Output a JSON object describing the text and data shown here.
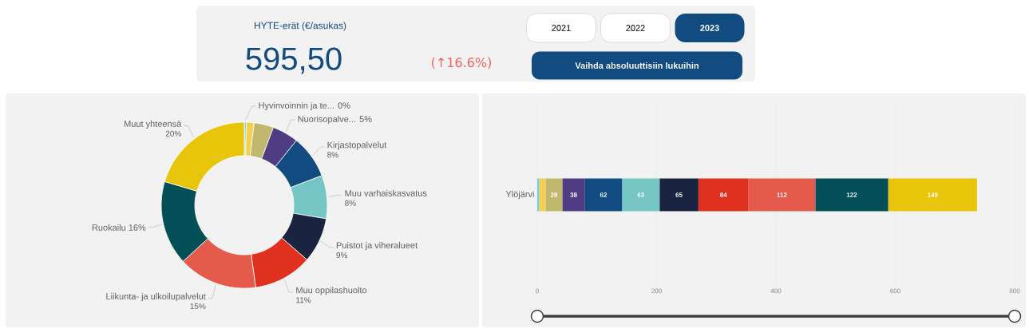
{
  "chart_data": [
    {
      "type": "other",
      "title": "HYTE-erät (€/asukas)",
      "annotations": [
        "595,50",
        "(↑16.6%)",
        "2021",
        "2022",
        "2023",
        "Vaihda absoluuttisiin lukuihin"
      ]
    },
    {
      "type": "donut",
      "categories": [
        "Hyvinvoinnin ja te...",
        null,
        null,
        "Nuorisopalve...",
        "Kirjastopalvelut",
        "Muu varhaiskasvatus",
        "Puistot ja viheralueet",
        "Muu oppilashuolto",
        "Liikunta- ja ulkoilupalvelut",
        "Ruokailu",
        "Muut yhteensä"
      ],
      "values": [
        0.4,
        1.5,
        3.8,
        5.1,
        8.4,
        8.4,
        8.8,
        11.4,
        15.4,
        16.4,
        20.4
      ],
      "value_labels": [
        "0%",
        null,
        null,
        "5%",
        "8%",
        "8%",
        "9%",
        "11%",
        "15%",
        "16%",
        "20%"
      ],
      "colors": [
        "#6fd0f6",
        "#f5d04f",
        "#bfb86e",
        "#4f3d84",
        "#124b80",
        "#74c5c4",
        "#1a2440",
        "#e0301e",
        "#e45b4b",
        "#024f58",
        "#e8c50a"
      ]
    },
    {
      "type": "bar",
      "orientation": "horizontal",
      "stacked": true,
      "grid": "x",
      "categories": [
        "Ylöjärvi"
      ],
      "xlim": [
        0,
        800
      ],
      "xticks": [
        0,
        200,
        400,
        600,
        800
      ],
      "series": [
        {
          "color": "#6fd0f6",
          "values": [
            3
          ],
          "value_labels": [
            null
          ]
        },
        {
          "color": "#f5d04f",
          "values": [
            11
          ],
          "value_labels": [
            null
          ]
        },
        {
          "color": "#bfb86e",
          "values": [
            28
          ],
          "value_labels": [
            "28"
          ]
        },
        {
          "color": "#4f3d84",
          "values": [
            38
          ],
          "value_labels": [
            "38"
          ]
        },
        {
          "color": "#124b80",
          "values": [
            62
          ],
          "value_labels": [
            "62"
          ]
        },
        {
          "color": "#74c5c4",
          "values": [
            63
          ],
          "value_labels": [
            "63"
          ]
        },
        {
          "color": "#1a2440",
          "values": [
            65
          ],
          "value_labels": [
            "65"
          ]
        },
        {
          "color": "#e0301e",
          "values": [
            84
          ],
          "value_labels": [
            "84"
          ]
        },
        {
          "color": "#e45b4b",
          "values": [
            112
          ],
          "value_labels": [
            "112"
          ]
        },
        {
          "color": "#024f58",
          "values": [
            122
          ],
          "value_labels": [
            "122"
          ]
        },
        {
          "color": "#e8c50a",
          "values": [
            149
          ],
          "value_labels": [
            "149"
          ]
        }
      ]
    }
  ]
}
